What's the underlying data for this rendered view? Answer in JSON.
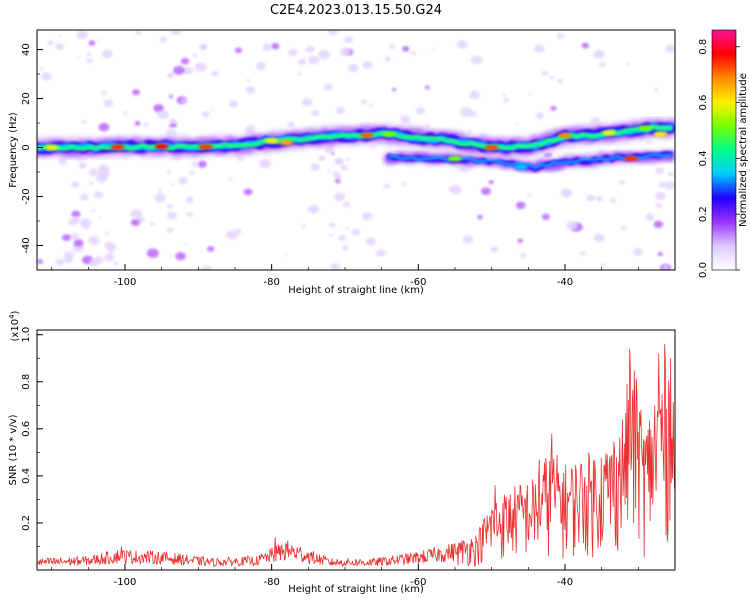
{
  "title": "C2E4.2023.013.15.50.G24",
  "chart_data": [
    {
      "type": "heatmap",
      "xlabel": "Height of straight line (km)",
      "ylabel": "Frequency (Hz)",
      "xlim": [
        -112,
        -25
      ],
      "ylim": [
        -50,
        48
      ],
      "xticks": [
        -100,
        -80,
        -60,
        -40
      ],
      "yticks": [
        -40,
        -20,
        0,
        20,
        40
      ],
      "colorbar": {
        "label": "Normalized spectral amplitude",
        "range": [
          0,
          0.86
        ],
        "ticks": [
          0.0,
          0.2,
          0.4,
          0.6,
          0.8
        ],
        "colors": [
          "#ffffff",
          "#ddccff",
          "#9933ff",
          "#2200ff",
          "#00ccff",
          "#00ff88",
          "#77ff00",
          "#ffee00",
          "#ff8800",
          "#ff0000",
          "#ff1199"
        ]
      },
      "ridge": [
        [
          -112,
          0
        ],
        [
          -106,
          0
        ],
        [
          -100,
          0.3
        ],
        [
          -96,
          0.5
        ],
        [
          -92,
          0.3
        ],
        [
          -88,
          0.5
        ],
        [
          -84,
          1.2
        ],
        [
          -80,
          2.5
        ],
        [
          -76,
          3.5
        ],
        [
          -72,
          4.5
        ],
        [
          -68,
          5
        ],
        [
          -64,
          5.5
        ],
        [
          -60,
          4
        ],
        [
          -56,
          3
        ],
        [
          -52,
          1
        ],
        [
          -48,
          0
        ],
        [
          -44,
          1
        ],
        [
          -40,
          4.5
        ],
        [
          -36,
          5
        ],
        [
          -32,
          6.5
        ],
        [
          -28,
          8
        ],
        [
          -25,
          8
        ]
      ],
      "lower_branch": [
        [
          -64,
          -4
        ],
        [
          -56,
          -4.5
        ],
        [
          -48,
          -6
        ],
        [
          -44,
          -8
        ],
        [
          -40,
          -6
        ],
        [
          -32,
          -4
        ],
        [
          -25,
          -3
        ]
      ]
    },
    {
      "type": "line",
      "xlabel": "Height of straight line (km)",
      "ylabel": "SNR (10 * v/v)",
      "y_multiplier": "(x10^4)",
      "xlim": [
        -112,
        -25
      ],
      "ylim": [
        0,
        1.02
      ],
      "xticks": [
        -100,
        -80,
        -60,
        -40
      ],
      "yticks": [
        0.2,
        0.4,
        0.6,
        0.8,
        1.0
      ],
      "color": "#e83030",
      "envelope": [
        [
          -112,
          0.05
        ],
        [
          -105,
          0.06
        ],
        [
          -101,
          0.09
        ],
        [
          -95,
          0.08
        ],
        [
          -88,
          0.05
        ],
        [
          -82,
          0.06
        ],
        [
          -78,
          0.13
        ],
        [
          -72,
          0.05
        ],
        [
          -66,
          0.05
        ],
        [
          -60,
          0.08
        ],
        [
          -55,
          0.12
        ],
        [
          -52,
          0.16
        ],
        [
          -50,
          0.3
        ],
        [
          -47,
          0.36
        ],
        [
          -44,
          0.4
        ],
        [
          -42,
          0.53
        ],
        [
          -40,
          0.45
        ],
        [
          -37,
          0.5
        ],
        [
          -34,
          0.55
        ],
        [
          -32,
          0.68
        ],
        [
          -31,
          0.93
        ],
        [
          -29,
          0.62
        ],
        [
          -27,
          0.88
        ],
        [
          -26,
          0.95
        ],
        [
          -25,
          0.75
        ]
      ],
      "peaks": [
        [
          -100.5,
          0.1
        ],
        [
          -79.5,
          0.14
        ],
        [
          -49.5,
          0.36
        ],
        [
          -43.5,
          0.47
        ],
        [
          -41.8,
          0.58
        ],
        [
          -31.2,
          0.94
        ],
        [
          -30.2,
          0.75
        ],
        [
          -27.2,
          0.92
        ],
        [
          -26.4,
          0.96
        ],
        [
          -25.6,
          0.9
        ]
      ]
    }
  ]
}
